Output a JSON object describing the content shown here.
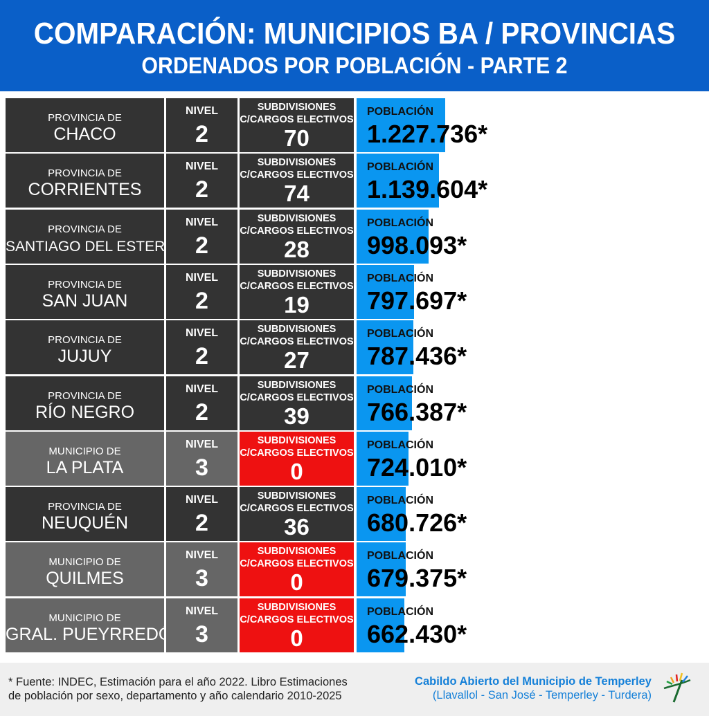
{
  "header": {
    "title": "COMPARACIÓN: MUNICIPIOS BA / PROVINCIAS",
    "subtitle": "ORDENADOS POR POBLACIÓN - PARTE 2"
  },
  "columns": {
    "level_label": "NIVEL",
    "subdivisions_line1": "SUBDIVISIONES",
    "subdivisions_line2": "C/CARGOS ELECTIVOS",
    "population_label": "POBLACIÓN"
  },
  "colors": {
    "header_blue": "#0a5fc8",
    "population_bar": "#0a96f0",
    "province_cell": "#333333",
    "municipality_cell": "#666666",
    "zero_subdivisions": "#ee1111",
    "footer_text": "#1580d8"
  },
  "chart_data": {
    "type": "table",
    "population_scale_max": 1227736,
    "rows": [
      {
        "kind": "PROVINCIA DE",
        "name": "CHACO",
        "level": "2",
        "subdivisions": "70",
        "population": 1227736,
        "population_text": "1.227.736*",
        "is_municipio": false
      },
      {
        "kind": "PROVINCIA DE",
        "name": "CORRIENTES",
        "level": "2",
        "subdivisions": "74",
        "population": 1139604,
        "population_text": "1.139.604*",
        "is_municipio": false
      },
      {
        "kind": "PROVINCIA DE",
        "name": "SANTIAGO DEL ESTERO",
        "level": "2",
        "subdivisions": "28",
        "population": 998093,
        "population_text": "998.093*",
        "is_municipio": false
      },
      {
        "kind": "PROVINCIA DE",
        "name": "SAN JUAN",
        "level": "2",
        "subdivisions": "19",
        "population": 797697,
        "population_text": "797.697*",
        "is_municipio": false
      },
      {
        "kind": "PROVINCIA DE",
        "name": "JUJUY",
        "level": "2",
        "subdivisions": "27",
        "population": 787436,
        "population_text": "787.436*",
        "is_municipio": false
      },
      {
        "kind": "PROVINCIA DE",
        "name": "RÍO NEGRO",
        "level": "2",
        "subdivisions": "39",
        "population": 766387,
        "population_text": "766.387*",
        "is_municipio": false
      },
      {
        "kind": "MUNICIPIO DE",
        "name": "LA PLATA",
        "level": "3",
        "subdivisions": "0",
        "population": 724010,
        "population_text": "724.010*",
        "is_municipio": true
      },
      {
        "kind": "PROVINCIA DE",
        "name": "NEUQUÉN",
        "level": "2",
        "subdivisions": "36",
        "population": 680726,
        "population_text": "680.726*",
        "is_municipio": false
      },
      {
        "kind": "MUNICIPIO DE",
        "name": "QUILMES",
        "level": "3",
        "subdivisions": "0",
        "population": 679375,
        "population_text": "679.375*",
        "is_municipio": true
      },
      {
        "kind": "MUNICIPIO DE",
        "name": "GRAL. PUEYRREDÓN",
        "level": "3",
        "subdivisions": "0",
        "population": 662430,
        "population_text": "662.430*",
        "is_municipio": true
      }
    ]
  },
  "footer": {
    "source_line1": "* Fuente: INDEC, Estimación para el año 2022. Libro Estimaciones",
    "source_line2": "de población por sexo, departamento y año calendario 2010-2025",
    "org_name": "Cabildo Abierto del Municipio de Temperley",
    "org_places": "(Llavallol - San José - Temperley - Turdera)"
  }
}
